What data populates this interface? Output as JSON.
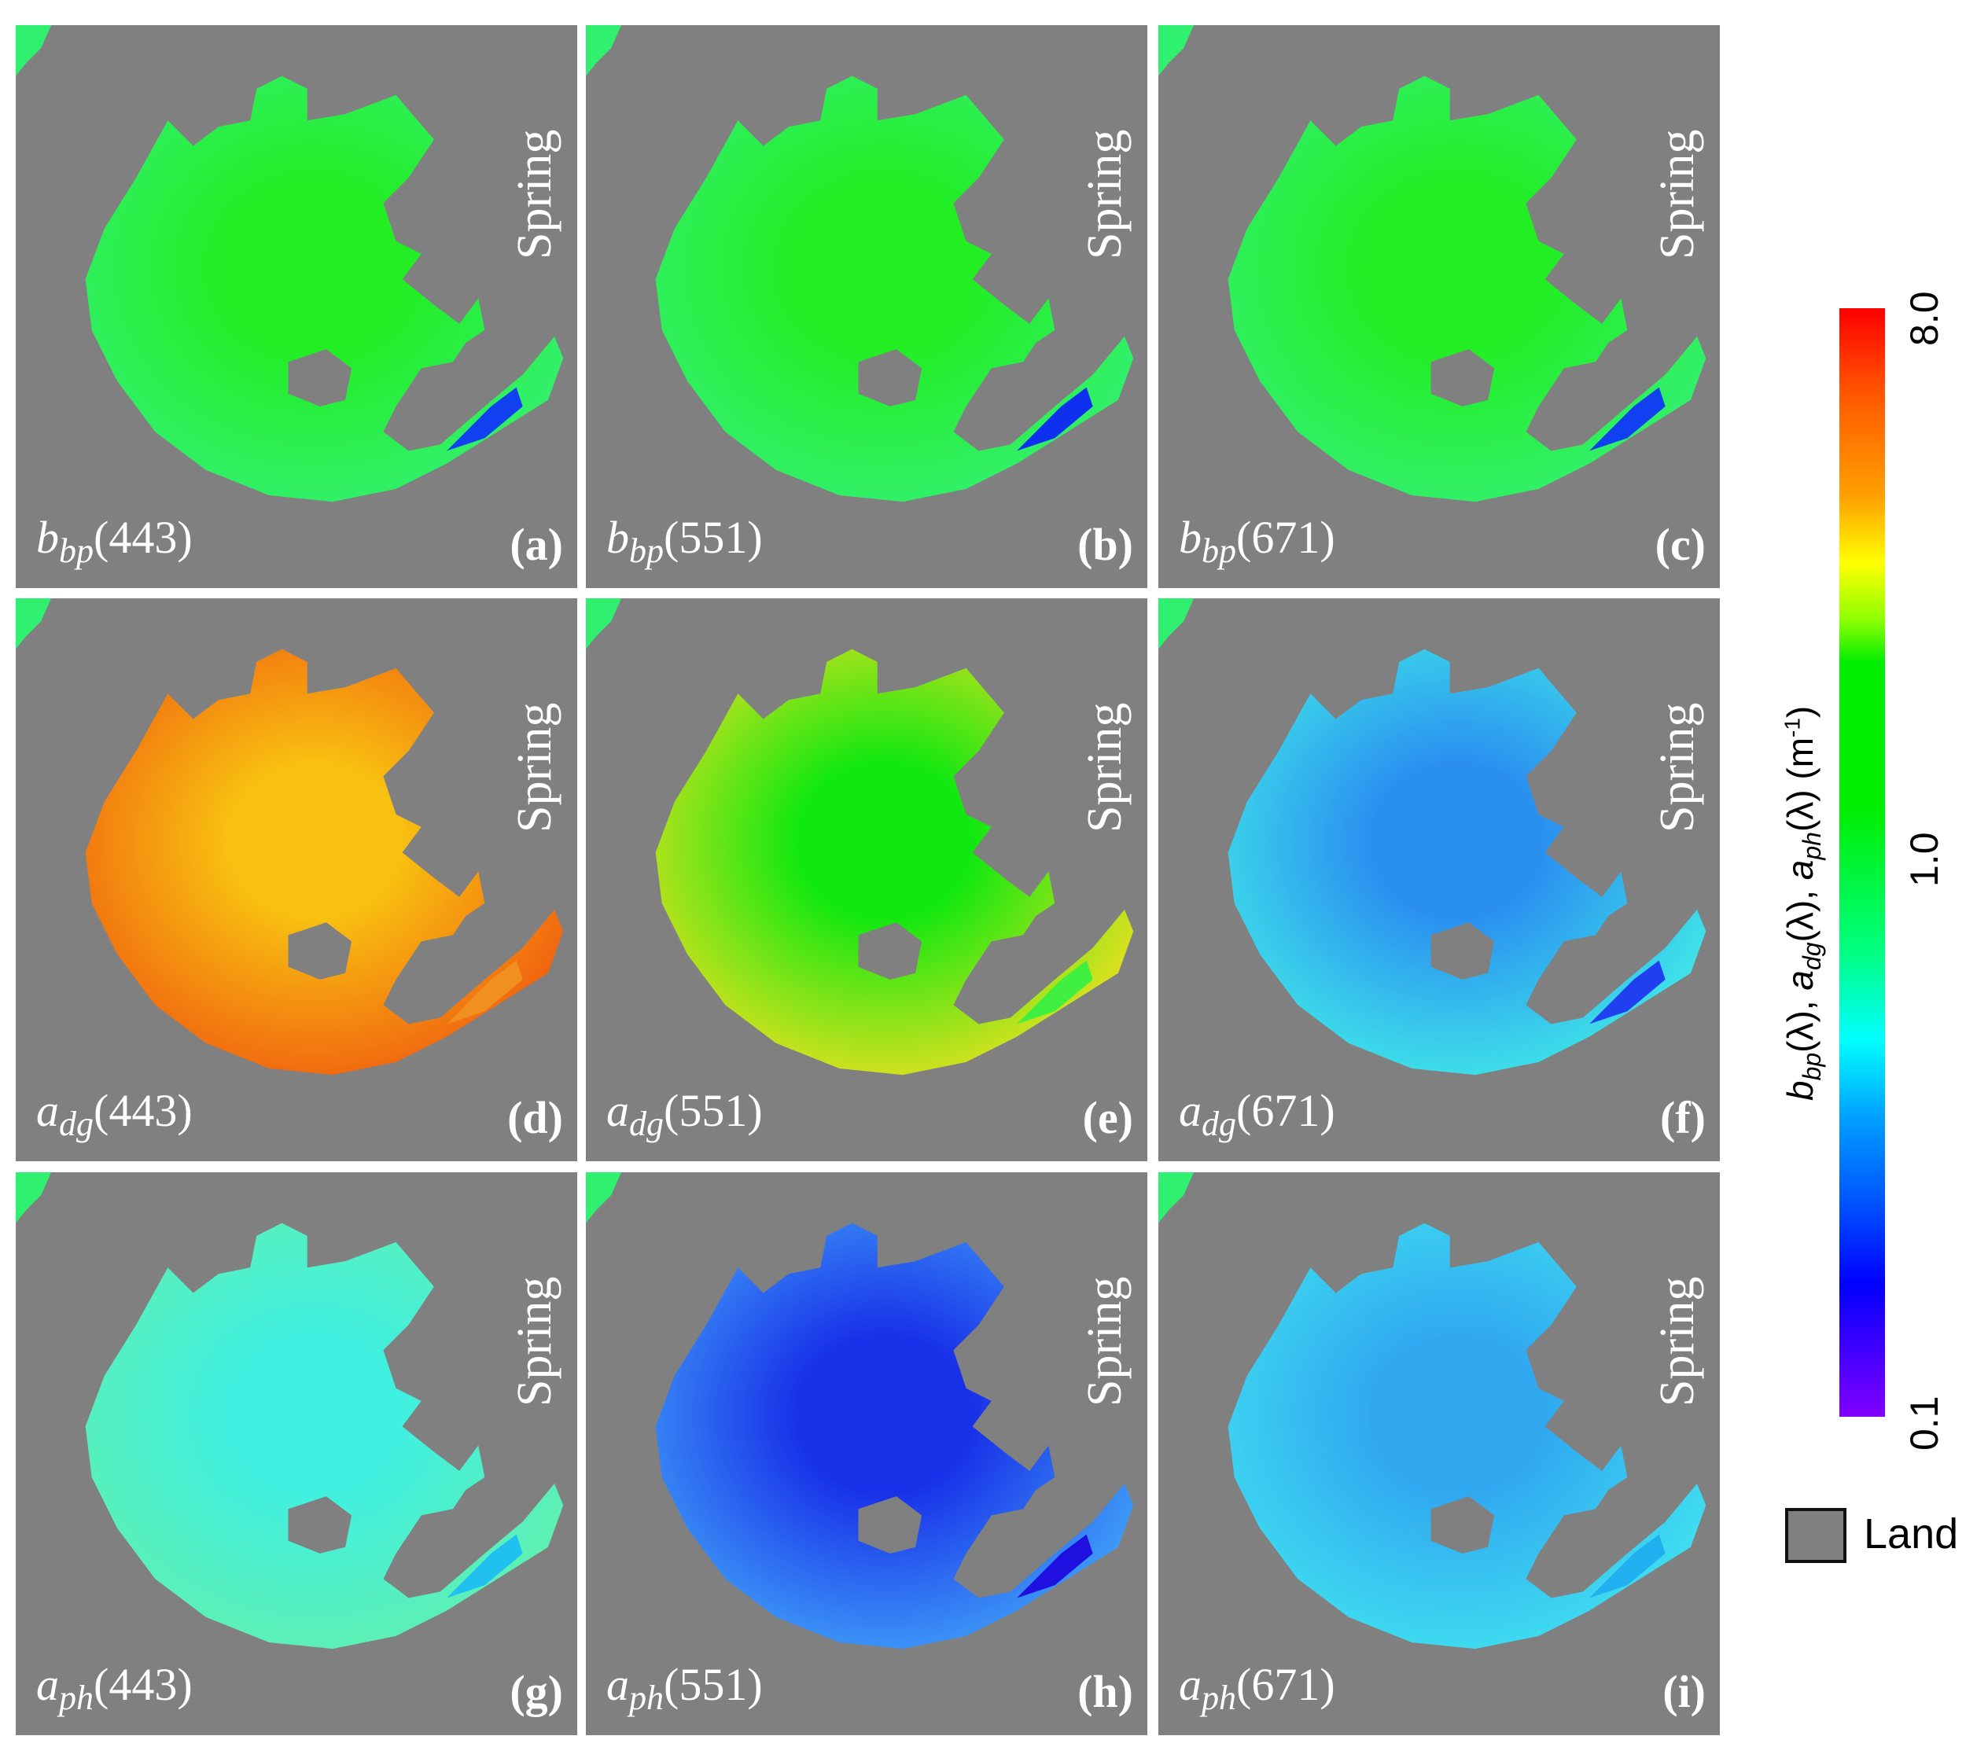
{
  "panels": [
    {
      "letter": "(a)",
      "var": "b",
      "sub": "bp",
      "wl": "(443)",
      "season": "Spring",
      "colors": {
        "center": "#22ee22",
        "edge": "#33f070",
        "patch": "#1040f0"
      }
    },
    {
      "letter": "(b)",
      "var": "b",
      "sub": "bp",
      "wl": "(551)",
      "season": "Spring",
      "colors": {
        "center": "#22ee22",
        "edge": "#33f070",
        "patch": "#1030f0"
      }
    },
    {
      "letter": "(c)",
      "var": "b",
      "sub": "bp",
      "wl": "(671)",
      "season": "Spring",
      "colors": {
        "center": "#22ee22",
        "edge": "#33f070",
        "patch": "#1040f0"
      }
    },
    {
      "letter": "(d)",
      "var": "a",
      "sub": "dg",
      "wl": "(443)",
      "season": "Spring",
      "colors": {
        "center": "#f8c010",
        "edge": "#f06010",
        "patch": "#f09020"
      }
    },
    {
      "letter": "(e)",
      "var": "a",
      "sub": "dg",
      "wl": "(551)",
      "season": "Spring",
      "colors": {
        "center": "#10e810",
        "edge": "#e8e020",
        "patch": "#40f040"
      }
    },
    {
      "letter": "(f)",
      "var": "a",
      "sub": "dg",
      "wl": "(671)",
      "season": "Spring",
      "colors": {
        "center": "#2a90f0",
        "edge": "#40e8e8",
        "patch": "#2040f0"
      }
    },
    {
      "letter": "(g)",
      "var": "a",
      "sub": "ph",
      "wl": "(443)",
      "season": "Spring",
      "colors": {
        "center": "#40f0e0",
        "edge": "#60f0b0",
        "patch": "#20c0f0"
      }
    },
    {
      "letter": "(h)",
      "var": "a",
      "sub": "ph",
      "wl": "(551)",
      "season": "Spring",
      "colors": {
        "center": "#1830e8",
        "edge": "#40a0f8",
        "patch": "#2010e0"
      }
    },
    {
      "letter": "(i)",
      "var": "a",
      "sub": "ph",
      "wl": "(671)",
      "season": "Spring",
      "colors": {
        "center": "#30a8f0",
        "edge": "#40e0f0",
        "patch": "#20b0f0"
      }
    }
  ],
  "land_color": "#808080",
  "colorbar": {
    "ticks": [
      "8.0",
      "1.0",
      "0.1"
    ],
    "scale": "log",
    "range": [
      0.1,
      8.0
    ],
    "colormap": "rainbow (violet-blue-cyan-green-yellow-red)",
    "label": {
      "p1": "b",
      "s1": "bp",
      "t1": "(λ), ",
      "p2": "a",
      "s2": "dg",
      "t2": "(λ), ",
      "p3": "a",
      "s3": "ph",
      "t3": "(λ) (m",
      "sup": "-1",
      "end": ")"
    }
  },
  "legend": {
    "land_label": "Land"
  }
}
